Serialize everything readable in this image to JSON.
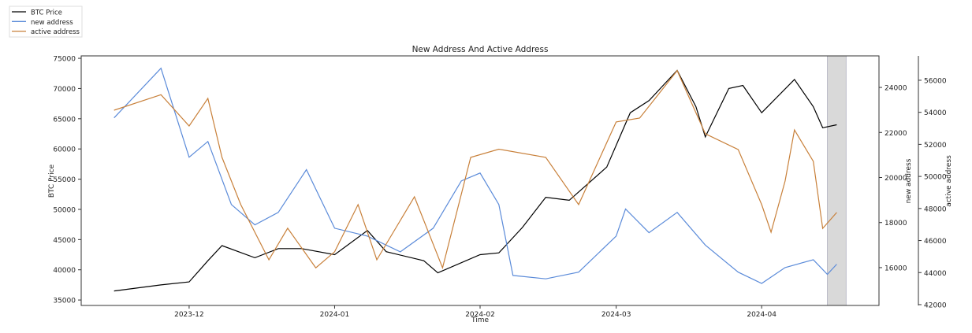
{
  "chart_data": {
    "type": "line",
    "title": "New Address And Active Address",
    "xlabel": "Time",
    "x_range": [
      "2023-11-08",
      "2024-04-26"
    ],
    "x_ticks": [
      "2023-12",
      "2024-01",
      "2024-02",
      "2024-03",
      "2024-04"
    ],
    "x_tick_dates": [
      "2023-12-01",
      "2024-01-01",
      "2024-02-01",
      "2024-03-01",
      "2024-04-01"
    ],
    "highlight_span": [
      "2024-04-15",
      "2024-04-19"
    ],
    "legend_position": "top-left",
    "axes": {
      "left": {
        "label": "BTC Price",
        "ylim": [
          34100,
          75400
        ],
        "ticks": [
          35000,
          40000,
          45000,
          50000,
          55000,
          60000,
          65000,
          70000,
          75000
        ]
      },
      "right1": {
        "label": "new address",
        "ylim": [
          14320,
          25400
        ],
        "ticks": [
          16000,
          18000,
          20000,
          22000,
          24000
        ]
      },
      "right2": {
        "label": "active address",
        "ylim": [
          41950,
          57520
        ],
        "ticks": [
          42000,
          44000,
          46000,
          48000,
          50000,
          52000,
          54000,
          56000
        ]
      }
    },
    "series": [
      {
        "name": "BTC Price",
        "axis": "left",
        "color": "#000000",
        "points": [
          [
            "2023-11-15",
            36500
          ],
          [
            "2023-11-25",
            37500
          ],
          [
            "2023-12-01",
            38000
          ],
          [
            "2023-12-05",
            41500
          ],
          [
            "2023-12-08",
            44000
          ],
          [
            "2023-12-15",
            42000
          ],
          [
            "2023-12-20",
            43500
          ],
          [
            "2023-12-25",
            43500
          ],
          [
            "2024-01-01",
            42500
          ],
          [
            "2024-01-08",
            46500
          ],
          [
            "2024-01-12",
            43000
          ],
          [
            "2024-01-20",
            41500
          ],
          [
            "2024-01-23",
            39500
          ],
          [
            "2024-02-01",
            42500
          ],
          [
            "2024-02-05",
            42800
          ],
          [
            "2024-02-10",
            47000
          ],
          [
            "2024-02-15",
            52000
          ],
          [
            "2024-02-20",
            51500
          ],
          [
            "2024-02-28",
            57000
          ],
          [
            "2024-03-04",
            66000
          ],
          [
            "2024-03-08",
            68000
          ],
          [
            "2024-03-14",
            73000
          ],
          [
            "2024-03-18",
            67000
          ],
          [
            "2024-03-20",
            62000
          ],
          [
            "2024-03-25",
            70000
          ],
          [
            "2024-03-28",
            70500
          ],
          [
            "2024-04-01",
            66000
          ],
          [
            "2024-04-08",
            71500
          ],
          [
            "2024-04-12",
            67000
          ],
          [
            "2024-04-14",
            63500
          ],
          [
            "2024-04-17",
            64000
          ]
        ]
      },
      {
        "name": "new address",
        "axis": "right1",
        "color": "#5b8bd9",
        "points": [
          [
            "2023-11-15",
            22650
          ],
          [
            "2023-11-25",
            24850
          ],
          [
            "2023-12-01",
            20900
          ],
          [
            "2023-12-05",
            21600
          ],
          [
            "2023-12-10",
            18800
          ],
          [
            "2023-12-15",
            17900
          ],
          [
            "2023-12-20",
            18450
          ],
          [
            "2023-12-26",
            20350
          ],
          [
            "2024-01-01",
            17750
          ],
          [
            "2024-01-08",
            17400
          ],
          [
            "2024-01-15",
            16700
          ],
          [
            "2024-01-22",
            17750
          ],
          [
            "2024-01-28",
            19850
          ],
          [
            "2024-02-01",
            20200
          ],
          [
            "2024-02-05",
            18800
          ],
          [
            "2024-02-08",
            15650
          ],
          [
            "2024-02-15",
            15500
          ],
          [
            "2024-02-22",
            15800
          ],
          [
            "2024-03-01",
            17400
          ],
          [
            "2024-03-03",
            18600
          ],
          [
            "2024-03-08",
            17550
          ],
          [
            "2024-03-14",
            18450
          ],
          [
            "2024-03-20",
            17000
          ],
          [
            "2024-03-27",
            15800
          ],
          [
            "2024-04-01",
            15300
          ],
          [
            "2024-04-06",
            16000
          ],
          [
            "2024-04-12",
            16350
          ],
          [
            "2024-04-15",
            15700
          ],
          [
            "2024-04-17",
            16150
          ]
        ]
      },
      {
        "name": "active address",
        "axis": "right2",
        "color": "#c8803a",
        "points": [
          [
            "2023-11-15",
            54130
          ],
          [
            "2023-11-25",
            55100
          ],
          [
            "2023-12-01",
            53150
          ],
          [
            "2023-12-05",
            54870
          ],
          [
            "2023-12-08",
            51190
          ],
          [
            "2023-12-12",
            48240
          ],
          [
            "2023-12-18",
            44800
          ],
          [
            "2023-12-22",
            46770
          ],
          [
            "2023-12-28",
            44300
          ],
          [
            "2024-01-01",
            45300
          ],
          [
            "2024-01-06",
            48240
          ],
          [
            "2024-01-10",
            44800
          ],
          [
            "2024-01-18",
            48730
          ],
          [
            "2024-01-24",
            44300
          ],
          [
            "2024-01-30",
            51190
          ],
          [
            "2024-02-05",
            51700
          ],
          [
            "2024-02-15",
            51190
          ],
          [
            "2024-02-22",
            48240
          ],
          [
            "2024-03-01",
            53400
          ],
          [
            "2024-03-06",
            53640
          ],
          [
            "2024-03-14",
            56600
          ],
          [
            "2024-03-20",
            52660
          ],
          [
            "2024-03-27",
            51680
          ],
          [
            "2024-04-01",
            48240
          ],
          [
            "2024-04-03",
            46520
          ],
          [
            "2024-04-06",
            49710
          ],
          [
            "2024-04-08",
            52900
          ],
          [
            "2024-04-12",
            50940
          ],
          [
            "2024-04-14",
            46760
          ],
          [
            "2024-04-17",
            47750
          ]
        ]
      }
    ]
  }
}
